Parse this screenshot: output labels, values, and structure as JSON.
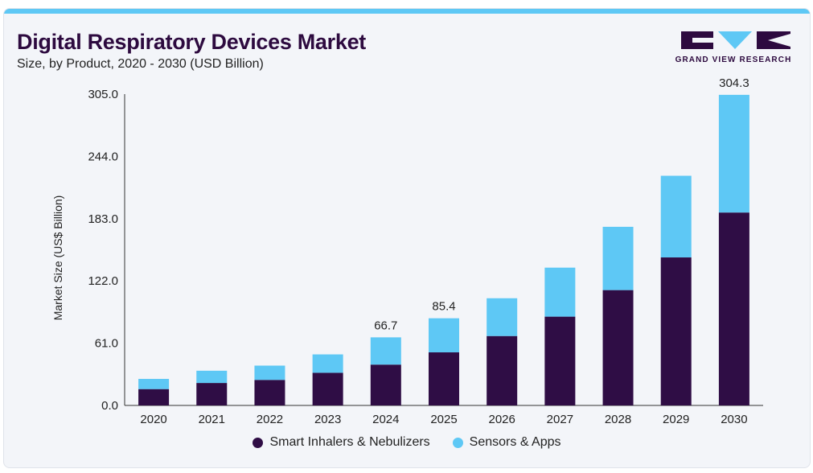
{
  "header": {
    "title": "Digital Respiratory Devices Market",
    "subtitle": "Size, by Product, 2020 - 2030 (USD Billion)"
  },
  "logo": {
    "text": "GRAND VIEW RESEARCH",
    "color": "#2d0a3f",
    "accent": "#5ec8f5"
  },
  "chart_data": {
    "type": "bar",
    "stacked": true,
    "title": "Digital Respiratory Devices Market",
    "subtitle": "Size, by Product, 2020 - 2030 (USD Billion)",
    "xlabel": "",
    "ylabel": "Market Size (US$ Billion)",
    "ylim": [
      0,
      305
    ],
    "yticks": [
      "0.0",
      "61.0",
      "122.0",
      "183.0",
      "244.0",
      "305.0"
    ],
    "categories": [
      "2020",
      "2021",
      "2022",
      "2023",
      "2024",
      "2025",
      "2026",
      "2027",
      "2028",
      "2029",
      "2030"
    ],
    "series": [
      {
        "name": "Smart Inhalers & Nebulizers",
        "color": "#2f0d45",
        "values": [
          16,
          22,
          25,
          32,
          40,
          52,
          68,
          87,
          113,
          145,
          189
        ]
      },
      {
        "name": "Sensors & Apps",
        "color": "#5ec8f5",
        "values": [
          10,
          12,
          14,
          18,
          26.7,
          33.4,
          37,
          48,
          62,
          80,
          115.3
        ]
      }
    ],
    "data_labels": [
      {
        "category": "2024",
        "text": "66.7"
      },
      {
        "category": "2025",
        "text": "85.4"
      },
      {
        "category": "2030",
        "text": "304.3"
      }
    ],
    "grid": false,
    "legend_position": "bottom"
  }
}
